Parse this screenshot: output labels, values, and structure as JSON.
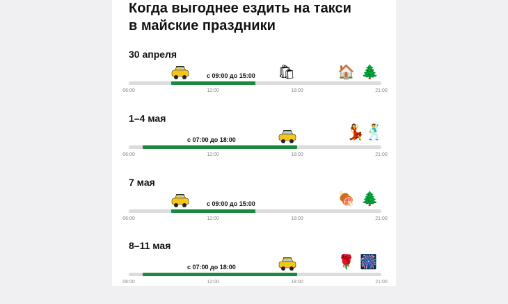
{
  "title": {
    "line1": "Когда выгоднее ездить на такси",
    "line2": "в майские праздники"
  },
  "timeline_ticks": [
    "06:00",
    "12:00",
    "18:00",
    "21:00"
  ],
  "sections": [
    {
      "date": "30 апреля",
      "range": "с 09:00 до 15:00",
      "start_hour": 9,
      "end_hour": 15,
      "icons": [
        "taxi-icon",
        "shopping-bags-icon",
        "house-icon",
        "tree-icon"
      ]
    },
    {
      "date": "1–4 мая",
      "range": "с 07:00 до 18:00",
      "start_hour": 7,
      "end_hour": 18,
      "icons": [
        "taxi-icon",
        "dancers-icon"
      ]
    },
    {
      "date": "7 мая",
      "range": "с 09:00 до 15:00",
      "start_hour": 9,
      "end_hour": 15,
      "icons": [
        "taxi-icon",
        "meat-icon",
        "tree-icon"
      ]
    },
    {
      "date": "8–11 мая",
      "range": "с 07:00 до 18:00",
      "start_hour": 7,
      "end_hour": 18,
      "icons": [
        "taxi-icon",
        "rose-icon",
        "fireworks-icon"
      ]
    }
  ],
  "colors": {
    "active_bar": "#1a8a3c",
    "track": "#dcdcdc",
    "taxi": "#f5c518"
  }
}
